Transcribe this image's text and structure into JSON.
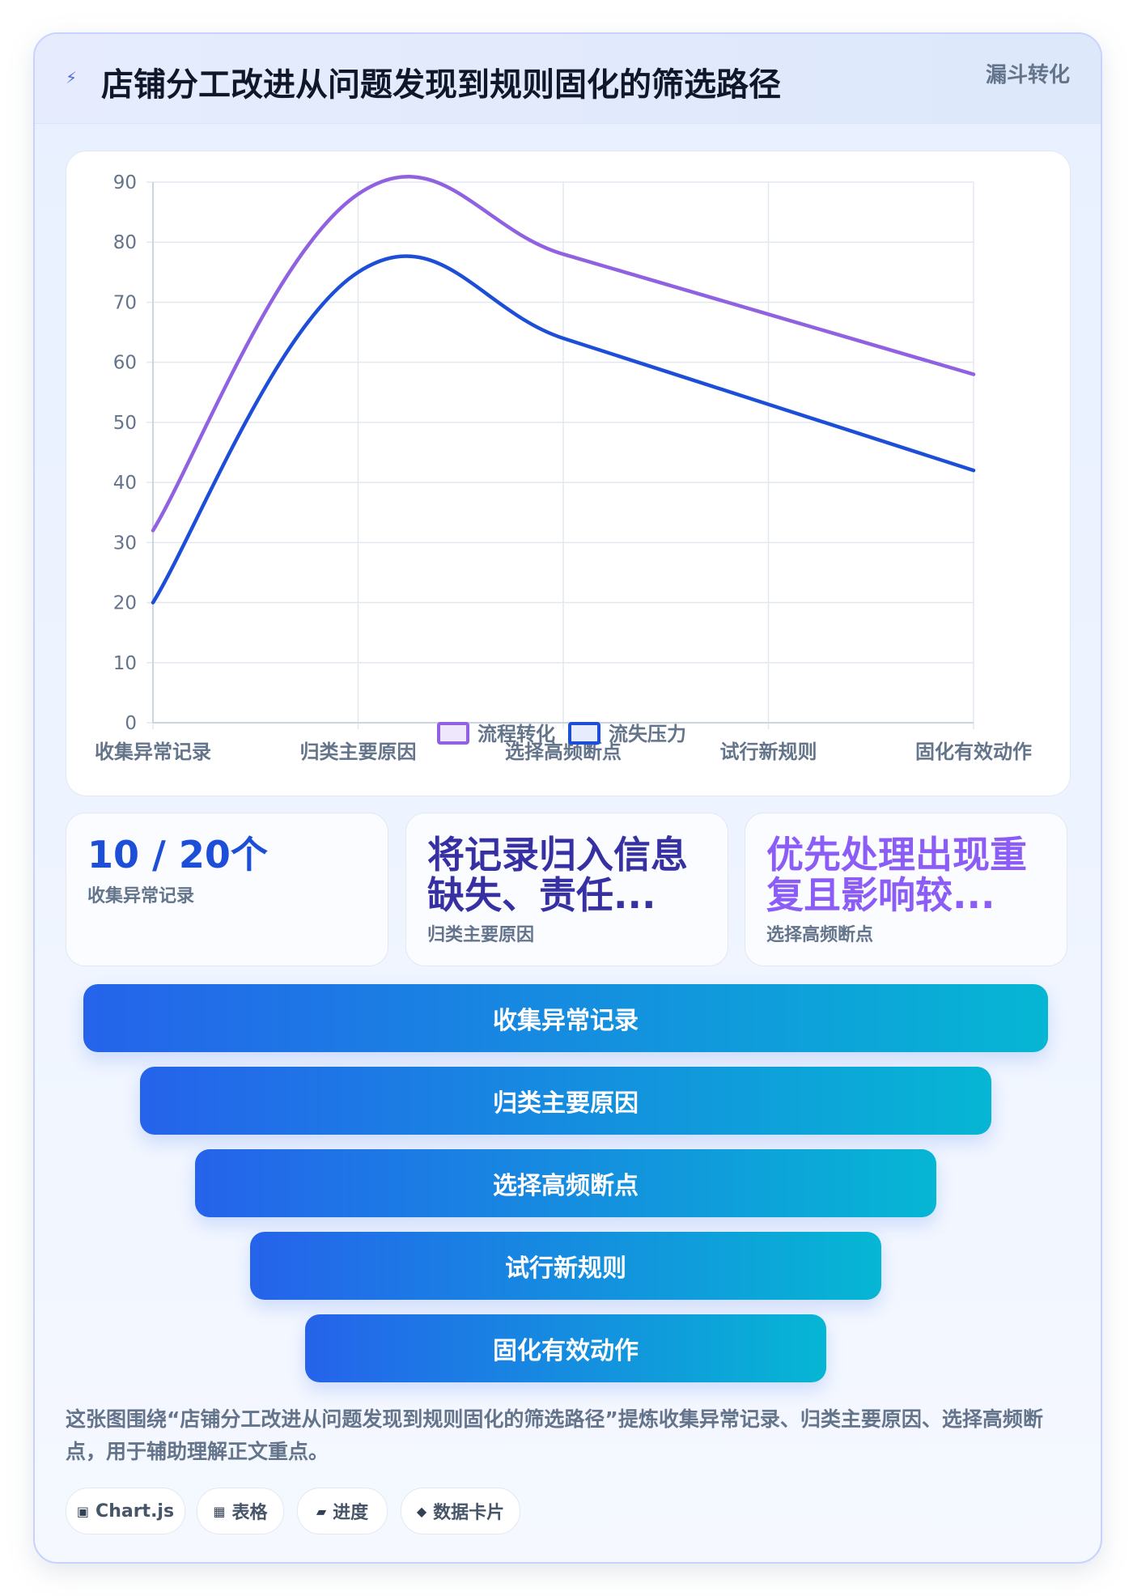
{
  "header": {
    "title": "店铺分工改进从问题发现到规则固化的筛选路径",
    "tag": "漏斗转化",
    "icon": "lightning-icon"
  },
  "chart_data": {
    "type": "line",
    "categories": [
      "收集异常记录",
      "归类主要原因",
      "选择高频断点",
      "试行新规则",
      "固化有效动作"
    ],
    "series": [
      {
        "name": "流程转化",
        "values": [
          32,
          88,
          78,
          68,
          58
        ],
        "color": "#9061e0"
      },
      {
        "name": "流失压力",
        "values": [
          20,
          75,
          64,
          53,
          42
        ],
        "color": "#1d4ed8"
      }
    ],
    "ylim": [
      0,
      90
    ],
    "yticks": [
      0,
      10,
      20,
      30,
      40,
      50,
      60,
      70,
      80,
      90
    ],
    "grid": true,
    "legend": "bottom"
  },
  "stats": [
    {
      "value": "10 / 20个",
      "label": "收集异常记录",
      "color": "#1d4ed8"
    },
    {
      "value": "将记录归入信息缺失、责任...",
      "label": "归类主要原因",
      "color": "#3730a3"
    },
    {
      "value": "优先处理出现重复且影响较...",
      "label": "选择高频断点",
      "color": "#8b5cf6"
    }
  ],
  "funnel": [
    "收集异常记录",
    "归类主要原因",
    "选择高频断点",
    "试行新规则",
    "固化有效动作"
  ],
  "description": "这张图围绕“店铺分工改进从问题发现到规则固化的筛选路径”提炼收集异常记录、归类主要原因、选择高频断点，用于辅助理解正文重点。",
  "chips": [
    {
      "icon": "▣",
      "label": "Chart.js"
    },
    {
      "icon": "▦",
      "label": "表格"
    },
    {
      "icon": "▰",
      "label": "进度"
    },
    {
      "icon": "◆",
      "label": "数据卡片"
    }
  ]
}
